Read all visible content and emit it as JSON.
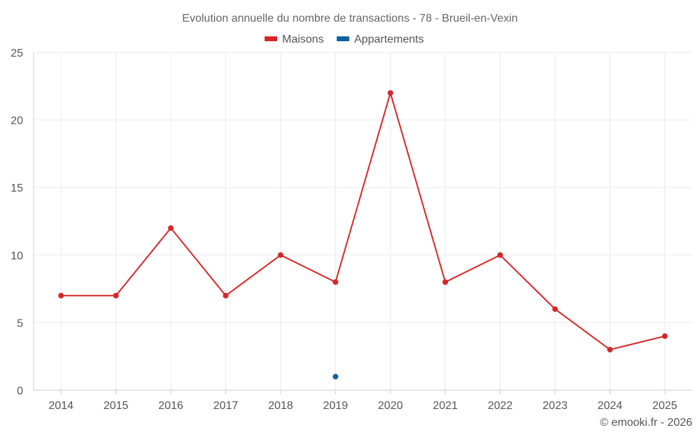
{
  "chart_data": {
    "type": "line",
    "title": "Evolution annuelle du nombre de transactions - 78 - Brueil-en-Vexin",
    "categories": [
      "2014",
      "2015",
      "2016",
      "2017",
      "2018",
      "2019",
      "2020",
      "2021",
      "2022",
      "2023",
      "2024",
      "2025"
    ],
    "series": [
      {
        "name": "Maisons",
        "color": "#d62728",
        "values": [
          7,
          7,
          12,
          7,
          10,
          8,
          22,
          8,
          10,
          6,
          3,
          4
        ]
      },
      {
        "name": "Appartements",
        "color": "#0f64a0",
        "values": [
          null,
          null,
          null,
          null,
          null,
          1,
          null,
          null,
          null,
          null,
          null,
          null
        ]
      }
    ],
    "yticks": [
      0,
      5,
      10,
      15,
      20,
      25
    ],
    "ylim": [
      0,
      25
    ],
    "xlabel": "",
    "ylabel": "",
    "grid": true,
    "legend_position": "top-center"
  },
  "credit": "© emooki.fr - 2026"
}
